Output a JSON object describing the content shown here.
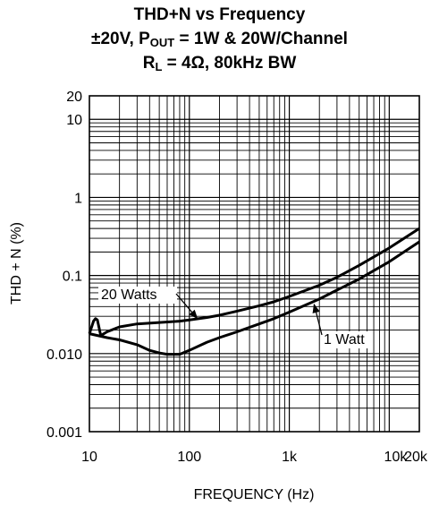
{
  "title": {
    "line1": "THD+N vs Frequency",
    "line2_prefix": "±20V, P",
    "line2_sub": "OUT",
    "line2_suffix": " = 1W & 20W/Channel",
    "line3_prefix": "R",
    "line3_sub": "L",
    "line3_suffix": " = 4Ω, 80kHz BW"
  },
  "chart_data": {
    "type": "line",
    "title": "THD+N vs Frequency",
    "xlabel": "FREQUENCY (Hz)",
    "ylabel": "THD + N (%)",
    "xscale": "log",
    "yscale": "log",
    "xlim": [
      10,
      20000
    ],
    "ylim": [
      0.001,
      20
    ],
    "grid": true,
    "x_ticks": [
      {
        "value": 10,
        "label": "10"
      },
      {
        "value": 100,
        "label": "100"
      },
      {
        "value": 1000,
        "label": "1k"
      },
      {
        "value": 10000,
        "label": "10k"
      },
      {
        "value": 20000,
        "label": "20k"
      }
    ],
    "y_ticks": [
      {
        "value": 0.001,
        "label": "0.001"
      },
      {
        "value": 0.01,
        "label": "0.010"
      },
      {
        "value": 0.1,
        "label": "0.1"
      },
      {
        "value": 1,
        "label": "1"
      },
      {
        "value": 10,
        "label": "10"
      },
      {
        "value": 20,
        "label": "20"
      }
    ],
    "series": [
      {
        "name": "20 Watts",
        "x": [
          10,
          11,
          11.5,
          12,
          13,
          15,
          20,
          30,
          50,
          80,
          100,
          150,
          200,
          300,
          500,
          700,
          1000,
          2000,
          3000,
          5000,
          10000,
          20000
        ],
        "y": [
          0.018,
          0.026,
          0.028,
          0.027,
          0.017,
          0.019,
          0.022,
          0.024,
          0.025,
          0.026,
          0.027,
          0.029,
          0.031,
          0.035,
          0.041,
          0.046,
          0.054,
          0.075,
          0.095,
          0.135,
          0.225,
          0.4
        ]
      },
      {
        "name": "1 Watt",
        "x": [
          10,
          15,
          20,
          30,
          40,
          50,
          60,
          80,
          100,
          150,
          200,
          300,
          500,
          700,
          1000,
          2000,
          3000,
          5000,
          10000,
          20000
        ],
        "y": [
          0.018,
          0.016,
          0.015,
          0.013,
          0.011,
          0.0102,
          0.0098,
          0.0098,
          0.011,
          0.014,
          0.016,
          0.019,
          0.024,
          0.028,
          0.034,
          0.05,
          0.065,
          0.09,
          0.15,
          0.27
        ]
      }
    ],
    "annotations": [
      {
        "text": "20 Watts",
        "series": "20 Watts"
      },
      {
        "text": "1 Watt",
        "series": "1 Watt"
      }
    ]
  }
}
